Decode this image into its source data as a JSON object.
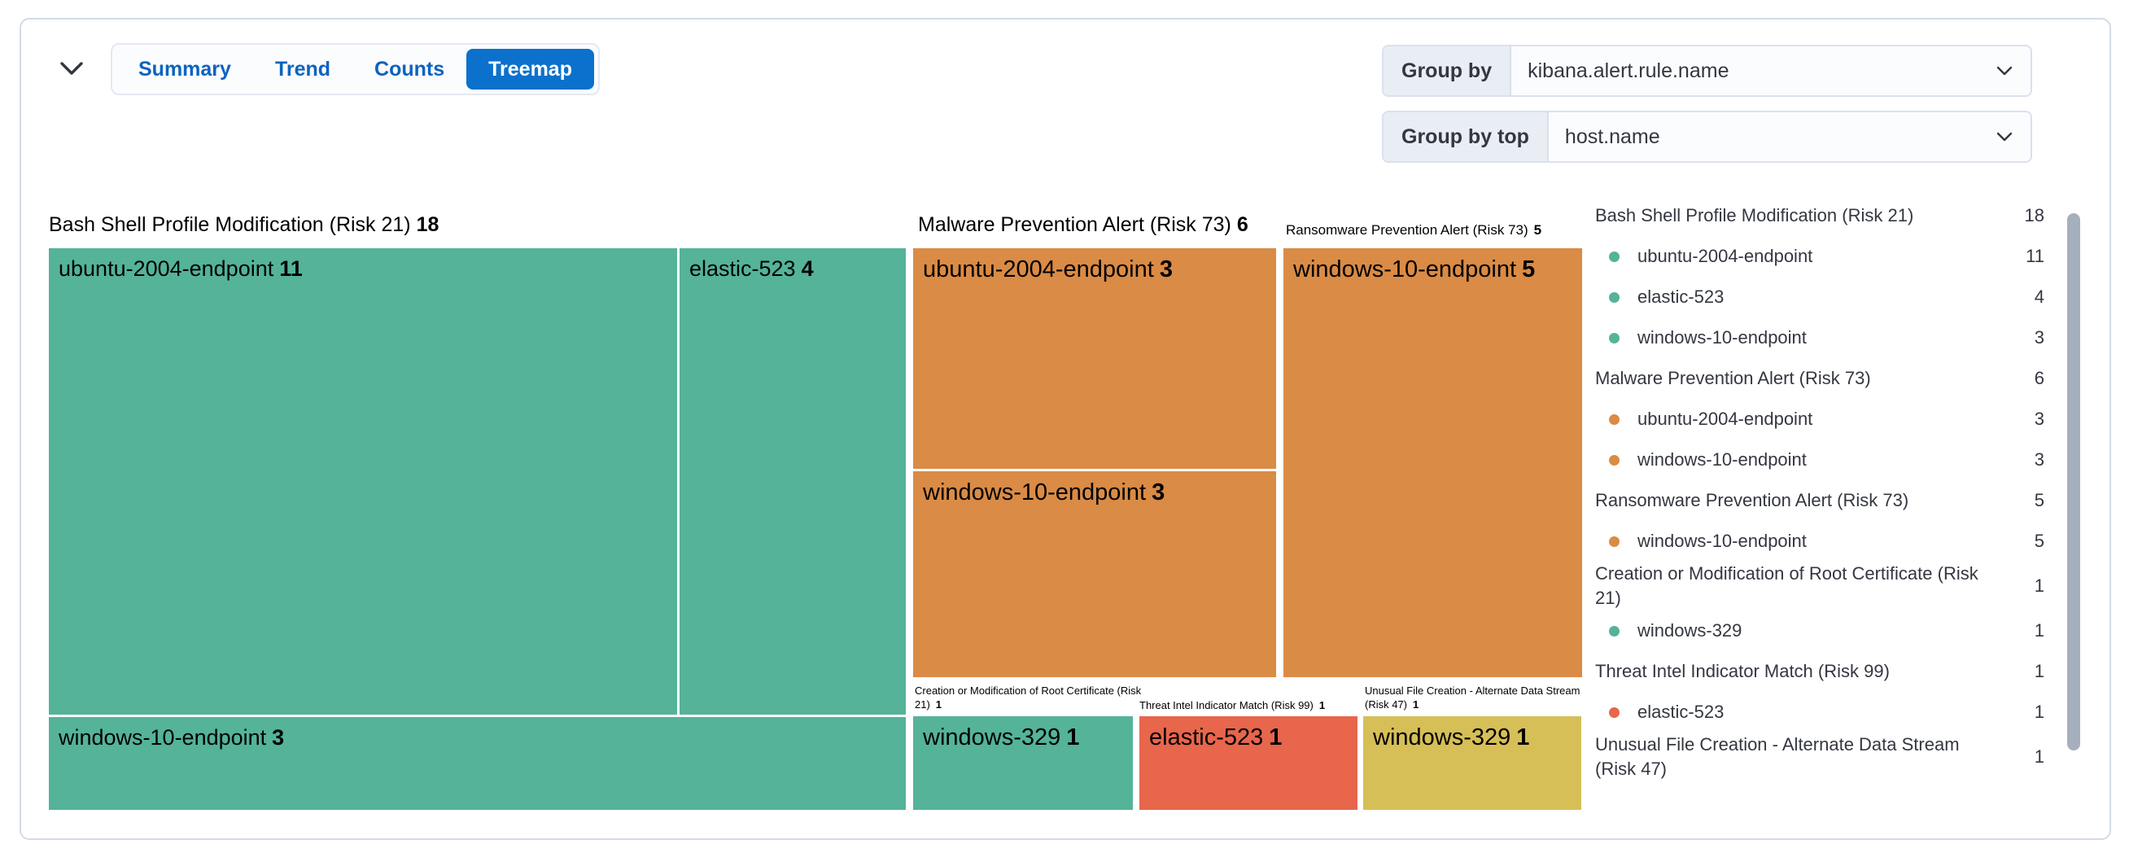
{
  "panel": {
    "tabs": [
      {
        "label": "Summary",
        "selected": false
      },
      {
        "label": "Trend",
        "selected": false
      },
      {
        "label": "Counts",
        "selected": false
      },
      {
        "label": "Treemap",
        "selected": true
      }
    ],
    "group_by": {
      "label": "Group by",
      "value": "kibana.alert.rule.name"
    },
    "group_by_top": {
      "label": "Group by top",
      "value": "host.name"
    }
  },
  "colors": {
    "risk_low_green": "#54B399",
    "risk_medium_yellow": "#D6BF57",
    "risk_high_orange": "#DA8B45",
    "risk_critical_red": "#E7664C",
    "selected_tab_blue": "#0B71CC",
    "tab_text_blue": "#0C63C0",
    "text_dark": "#343741",
    "panel_border": "#D3DAE6"
  },
  "chart_data": {
    "type": "treemap",
    "group_by": "kibana.alert.rule.name",
    "group_by_top": "host.name",
    "legend_position": "right",
    "sections": [
      {
        "name": "Bash Shell Profile Modification (Risk 21)",
        "value": 18,
        "risk": 21,
        "color": "#54B399",
        "children": [
          {
            "name": "ubuntu-2004-endpoint",
            "value": 11
          },
          {
            "name": "elastic-523",
            "value": 4
          },
          {
            "name": "windows-10-endpoint",
            "value": 3
          }
        ]
      },
      {
        "name": "Malware Prevention Alert (Risk 73)",
        "value": 6,
        "risk": 73,
        "color": "#DA8B45",
        "children": [
          {
            "name": "ubuntu-2004-endpoint",
            "value": 3
          },
          {
            "name": "windows-10-endpoint",
            "value": 3
          }
        ]
      },
      {
        "name": "Ransomware Prevention Alert (Risk 73)",
        "value": 5,
        "risk": 73,
        "color": "#DA8B45",
        "children": [
          {
            "name": "windows-10-endpoint",
            "value": 5
          }
        ]
      },
      {
        "name": "Creation or Modification of Root Certificate (Risk 21)",
        "value": 1,
        "risk": 21,
        "color": "#54B399",
        "children": [
          {
            "name": "windows-329",
            "value": 1
          }
        ]
      },
      {
        "name": "Threat Intel Indicator Match (Risk 99)",
        "value": 1,
        "risk": 99,
        "color": "#E7664C",
        "children": [
          {
            "name": "elastic-523",
            "value": 1
          }
        ]
      },
      {
        "name": "Unusual File Creation - Alternate Data Stream (Risk 47)",
        "value": 1,
        "risk": 47,
        "color": "#D6BF57",
        "children": [
          {
            "name": "windows-329",
            "value": 1
          }
        ]
      }
    ],
    "legend": {
      "position": "right",
      "rows": [
        {
          "type": "rule",
          "label": "Bash Shell Profile Modification (Risk 21)",
          "value": 18
        },
        {
          "type": "item",
          "label": "ubuntu-2004-endpoint",
          "value": 11,
          "color": "#54B399"
        },
        {
          "type": "item",
          "label": "elastic-523",
          "value": 4,
          "color": "#54B399"
        },
        {
          "type": "item",
          "label": "windows-10-endpoint",
          "value": 3,
          "color": "#54B399"
        },
        {
          "type": "rule",
          "label": "Malware Prevention Alert (Risk 73)",
          "value": 6
        },
        {
          "type": "item",
          "label": "ubuntu-2004-endpoint",
          "value": 3,
          "color": "#DA8B45"
        },
        {
          "type": "item",
          "label": "windows-10-endpoint",
          "value": 3,
          "color": "#DA8B45"
        },
        {
          "type": "rule",
          "label": "Ransomware Prevention Alert (Risk 73)",
          "value": 5
        },
        {
          "type": "item",
          "label": "windows-10-endpoint",
          "value": 5,
          "color": "#DA8B45"
        },
        {
          "type": "rule",
          "label": "Creation or Modification of Root Certificate (Risk 21)",
          "value": 1
        },
        {
          "type": "item",
          "label": "windows-329",
          "value": 1,
          "color": "#54B399"
        },
        {
          "type": "rule",
          "label": "Threat Intel Indicator Match (Risk 99)",
          "value": 1
        },
        {
          "type": "item",
          "label": "elastic-523",
          "value": 1,
          "color": "#E7664C"
        },
        {
          "type": "rule",
          "label": "Unusual File Creation - Alternate Data Stream (Risk 47)",
          "value": 1
        }
      ]
    }
  }
}
